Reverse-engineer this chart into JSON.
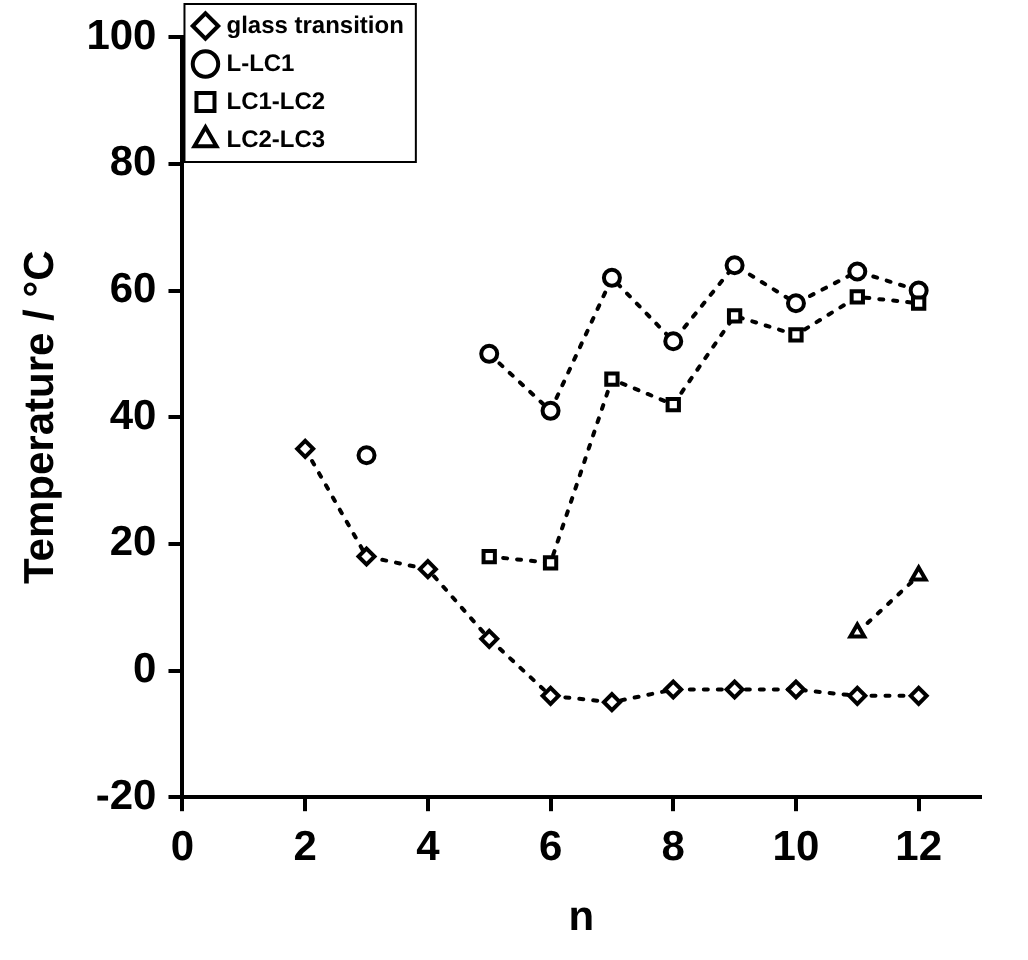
{
  "chart_data": {
    "type": "line",
    "xlabel": "n",
    "ylabel": "Temperature / °C",
    "xlim": [
      0,
      13
    ],
    "xticks": [
      0,
      2,
      4,
      6,
      8,
      10,
      12
    ],
    "ylim": [
      -20,
      100
    ],
    "yticks": [
      -20,
      0,
      20,
      40,
      60,
      80,
      100
    ],
    "grid": false,
    "legend": "top left",
    "line_style": "dotted",
    "series": [
      {
        "name": "glass transition",
        "color": "#000000",
        "marker": "diamond",
        "x": [
          2,
          3,
          4,
          5,
          6,
          7,
          8,
          9,
          10,
          11,
          12
        ],
        "values": [
          35,
          18,
          16,
          5,
          -4,
          -5,
          -3,
          -3,
          -3,
          -4,
          -4
        ]
      },
      {
        "name": "L-LC1",
        "color": "#000000",
        "marker": "circle",
        "x": [
          3,
          4,
          5,
          6,
          7,
          8,
          9,
          10,
          11,
          12
        ],
        "values": [
          34,
          null,
          50,
          41,
          62,
          52,
          64,
          58,
          63,
          60
        ]
      },
      {
        "name": "LC1-LC2",
        "color": "#000000",
        "marker": "square",
        "x": [
          5,
          6,
          7,
          8,
          9,
          10,
          11,
          12
        ],
        "values": [
          18,
          17,
          46,
          42,
          56,
          53,
          59,
          58
        ]
      },
      {
        "name": "LC2-LC3",
        "color": "#000000",
        "marker": "triangle",
        "x": [
          11,
          12
        ],
        "values": [
          6,
          15
        ]
      }
    ]
  }
}
